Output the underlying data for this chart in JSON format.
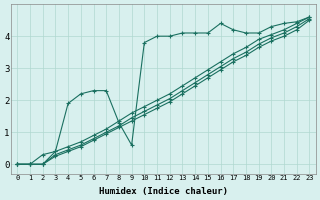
{
  "xlabel": "Humidex (Indice chaleur)",
  "ylabel": "",
  "bg_color": "#d8f0ee",
  "line_color": "#1a7060",
  "marker": "+",
  "xlim": [
    -0.5,
    23.5
  ],
  "ylim": [
    -0.3,
    5.0
  ],
  "xticks": [
    0,
    1,
    2,
    3,
    4,
    5,
    6,
    7,
    8,
    9,
    10,
    11,
    12,
    13,
    14,
    15,
    16,
    17,
    18,
    19,
    20,
    21,
    22,
    23
  ],
  "yticks": [
    0,
    1,
    2,
    3,
    4
  ],
  "grid_color": "#b0d8d0",
  "line1_x": [
    0,
    1,
    2,
    3,
    4,
    5,
    6,
    7,
    8,
    9,
    10,
    11,
    12,
    13,
    14,
    15,
    16,
    17,
    18,
    19,
    20,
    21,
    22,
    23
  ],
  "line1_y": [
    0.0,
    0.0,
    0.3,
    0.4,
    1.9,
    2.2,
    2.3,
    2.3,
    1.3,
    0.6,
    3.8,
    4.0,
    4.0,
    4.1,
    4.1,
    4.1,
    4.4,
    4.2,
    4.1,
    4.1,
    4.3,
    4.4,
    4.45,
    4.6
  ],
  "line2_x": [
    0,
    1,
    2,
    3,
    4,
    5,
    6,
    7,
    8,
    9,
    10,
    11,
    12,
    13,
    14,
    15,
    16,
    17,
    18,
    19,
    20,
    21,
    22,
    23
  ],
  "line2_y": [
    0.0,
    0.0,
    0.0,
    0.4,
    0.55,
    0.7,
    0.9,
    1.1,
    1.35,
    1.6,
    1.8,
    2.0,
    2.2,
    2.45,
    2.7,
    2.95,
    3.2,
    3.45,
    3.65,
    3.9,
    4.05,
    4.2,
    4.4,
    4.6
  ],
  "line3_x": [
    0,
    1,
    2,
    3,
    4,
    5,
    6,
    7,
    8,
    9,
    10,
    11,
    12,
    13,
    14,
    15,
    16,
    17,
    18,
    19,
    20,
    21,
    22,
    23
  ],
  "line3_y": [
    0.0,
    0.0,
    0.0,
    0.3,
    0.45,
    0.6,
    0.8,
    1.0,
    1.2,
    1.45,
    1.65,
    1.85,
    2.05,
    2.3,
    2.55,
    2.8,
    3.05,
    3.3,
    3.5,
    3.75,
    3.95,
    4.1,
    4.3,
    4.55
  ],
  "line4_x": [
    0,
    1,
    2,
    3,
    4,
    5,
    6,
    7,
    8,
    9,
    10,
    11,
    12,
    13,
    14,
    15,
    16,
    17,
    18,
    19,
    20,
    21,
    22,
    23
  ],
  "line4_y": [
    0.0,
    0.0,
    0.0,
    0.25,
    0.4,
    0.55,
    0.75,
    0.95,
    1.15,
    1.35,
    1.55,
    1.75,
    1.95,
    2.2,
    2.45,
    2.7,
    2.95,
    3.2,
    3.4,
    3.65,
    3.85,
    4.0,
    4.2,
    4.5
  ]
}
